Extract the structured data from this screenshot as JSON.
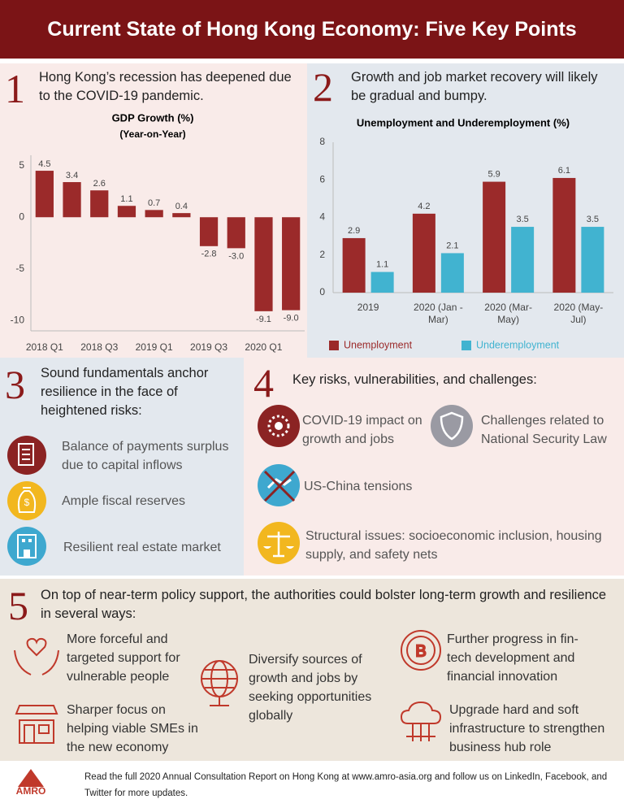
{
  "header": {
    "title": "Current State of Hong Kong Economy: Five Key Points"
  },
  "chart_data": [
    {
      "type": "bar",
      "title": "GDP Growth (%)",
      "subtitle": "(Year-on-Year)",
      "categories": [
        "2018 Q1",
        null,
        "2018 Q3",
        null,
        "2019 Q1",
        null,
        "2019 Q3",
        null,
        "2020 Q1",
        null
      ],
      "values": [
        4.5,
        3.4,
        2.6,
        1.1,
        0.7,
        0.4,
        -2.8,
        -3.0,
        -9.1,
        -9.0
      ],
      "value_labels": [
        "4.5",
        "3.4",
        "2.6",
        "1.1",
        "0.7",
        "0.4",
        "-2.8",
        "-3.0",
        "-9.1",
        "-9.0"
      ],
      "color": "#9b2a2a",
      "ylim": [
        -11,
        6
      ],
      "yticks": [
        5,
        0,
        -5,
        -10
      ],
      "grid": false
    },
    {
      "type": "bar",
      "title": "Unemployment and Underemployment (%)",
      "categories": [
        "2019",
        "2020 (Jan - Mar)",
        "2020 (Mar-May)",
        "2020 (May-Jul)"
      ],
      "series": [
        {
          "name": "Unemployment",
          "color": "#9b2a2a",
          "values": [
            2.9,
            4.2,
            5.9,
            6.1
          ]
        },
        {
          "name": "Underemployment",
          "color": "#41b3d0",
          "values": [
            1.1,
            2.1,
            3.5,
            3.5
          ]
        }
      ],
      "ylim": [
        0,
        8
      ],
      "yticks": [
        0,
        2,
        4,
        6,
        8
      ],
      "grid": false
    }
  ],
  "sections": [
    {
      "number": "1",
      "text": "Hong Kong’s recession has deepened due to the COVID-19 pandemic."
    },
    {
      "number": "2",
      "text": "Growth and job market recovery will likely be gradual and bumpy."
    },
    {
      "number": "3",
      "heading": "Sound fundamentals anchor resilience in the face of heightened risks:",
      "items": [
        "Balance of payments surplus due to capital inflows",
        "Ample fiscal reserves",
        "Resilient real estate market"
      ]
    },
    {
      "number": "4",
      "heading": "Key risks, vulnerabilities, and challenges:",
      "items": [
        "COVID-19 impact on growth and jobs",
        "Challenges related to National Security Law",
        "US-China tensions",
        "Structural issues: socioeconomic inclusion, housing supply, and safety nets"
      ]
    },
    {
      "number": "5",
      "heading": "On top of near-term policy support, the authorities could bolster long-term growth and resilience in several ways:",
      "items": [
        "More forceful and targeted support for vulnerable people",
        "Diversify sources of growth and jobs by seeking opportunities globally",
        "Further progress in fin-tech development and financial innovation",
        "Sharper focus on helping viable SMEs in the new economy",
        "Upgrade hard and soft infrastructure to strengthen business hub role"
      ]
    }
  ],
  "footer": {
    "logo": "AMRO",
    "text": "Read the full 2020 Annual Consultation Report on Hong Kong at www.amro-asia.org and follow us on LinkedIn, Facebook, and Twitter for more updates."
  }
}
